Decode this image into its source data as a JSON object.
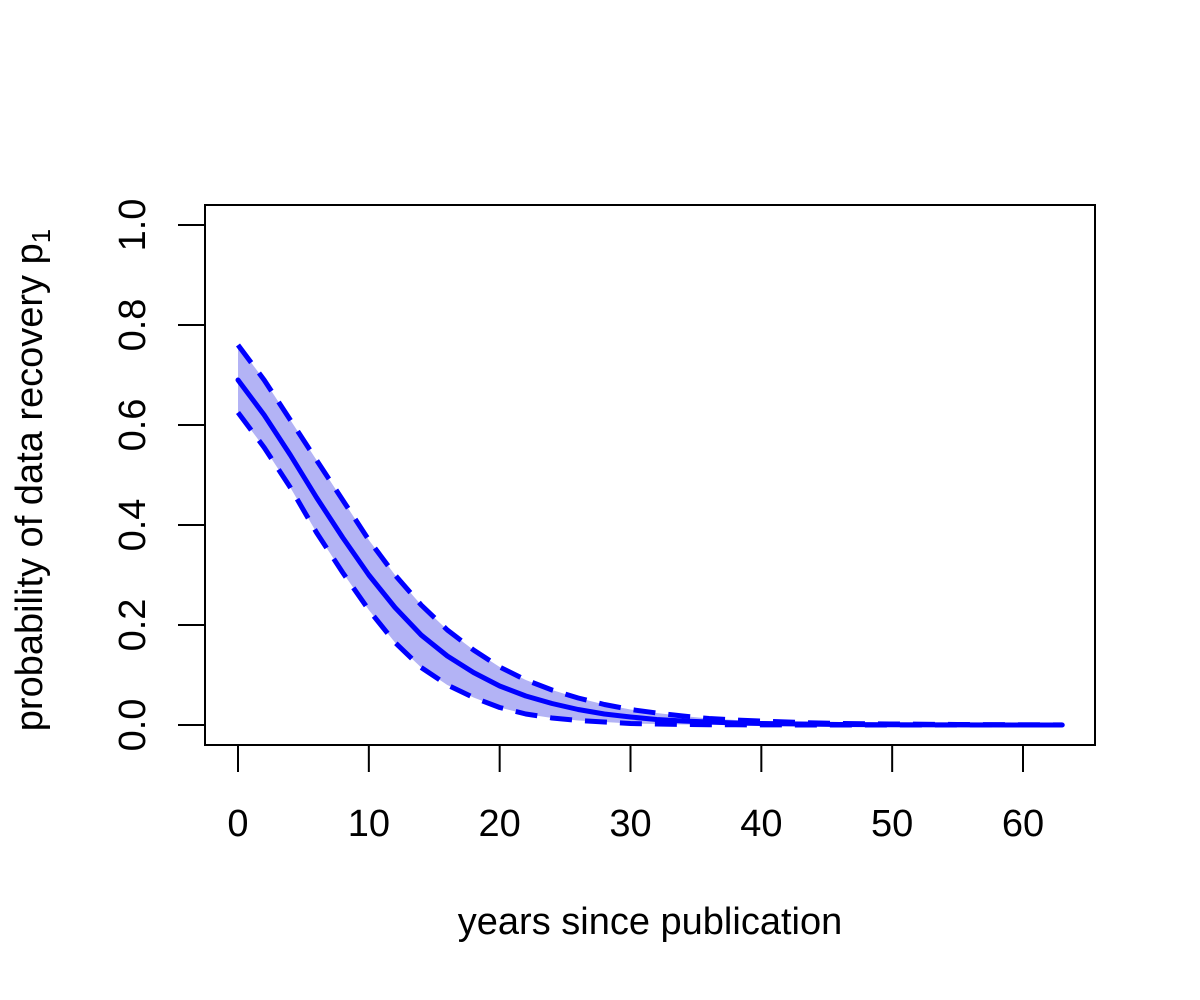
{
  "chart_data": {
    "type": "line",
    "title": "",
    "xlabel": "years since publication",
    "ylabel": "probability of data recovery p",
    "ylabel_subscript": "1",
    "xlim": [
      0,
      63
    ],
    "ylim": [
      0,
      1
    ],
    "x_ticks": [
      "0",
      "10",
      "20",
      "30",
      "40",
      "50",
      "60"
    ],
    "y_ticks": [
      "0.0",
      "0.2",
      "0.4",
      "0.6",
      "0.8",
      "1.0"
    ],
    "grid": false,
    "legend": "none",
    "colors": {
      "line": "#0000ff",
      "band": "#b3b3f5"
    },
    "x": [
      0,
      2,
      4,
      6,
      8,
      10,
      12,
      14,
      16,
      18,
      20,
      22,
      24,
      26,
      28,
      30,
      32,
      34,
      36,
      38,
      40,
      43,
      46,
      50,
      55,
      60,
      63
    ],
    "series": [
      {
        "role": "estimate",
        "style": "solid",
        "values": [
          0.69,
          0.62,
          0.54,
          0.455,
          0.375,
          0.3,
          0.235,
          0.18,
          0.138,
          0.105,
          0.078,
          0.058,
          0.043,
          0.031,
          0.022,
          0.016,
          0.011,
          0.008,
          0.006,
          0.004,
          0.003,
          0.002,
          0.001,
          0.0006,
          0.0003,
          0.0001,
          0.0
        ]
      },
      {
        "role": "upper",
        "style": "dashed",
        "values": [
          0.76,
          0.69,
          0.61,
          0.53,
          0.45,
          0.37,
          0.3,
          0.24,
          0.19,
          0.15,
          0.116,
          0.09,
          0.07,
          0.054,
          0.041,
          0.031,
          0.024,
          0.018,
          0.013,
          0.01,
          0.008,
          0.005,
          0.003,
          0.002,
          0.001,
          0.0005,
          0.0003
        ]
      },
      {
        "role": "lower",
        "style": "dashed",
        "values": [
          0.625,
          0.555,
          0.475,
          0.385,
          0.305,
          0.23,
          0.165,
          0.115,
          0.08,
          0.055,
          0.035,
          0.022,
          0.014,
          0.009,
          0.006,
          0.003,
          0.002,
          0.001,
          0.0006,
          0.0004,
          0.0002,
          0.0001,
          0.0,
          0.0,
          0.0,
          0.0,
          0.0
        ]
      }
    ]
  }
}
